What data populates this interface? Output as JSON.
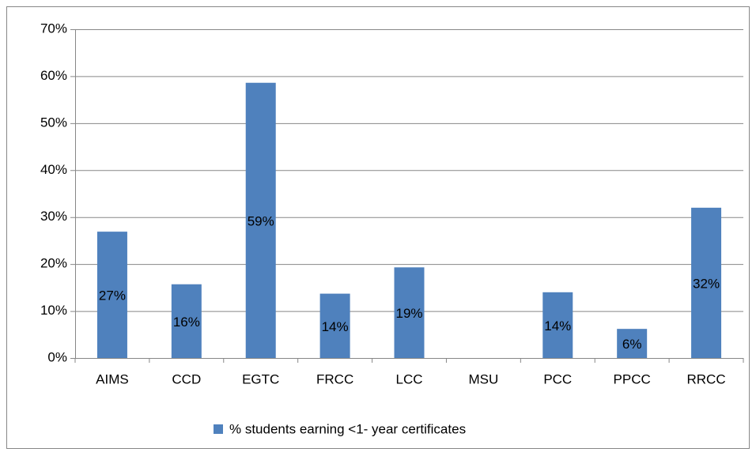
{
  "chart_data": {
    "type": "bar",
    "categories": [
      "AIMS",
      "CCD",
      "EGTC",
      "FRCC",
      "LCC",
      "MSU",
      "PCC",
      "PPCC",
      "RRCC"
    ],
    "series": [
      {
        "name": "% students earning <1- year certificates",
        "color": "#4f81bd",
        "values": [
          26.9,
          15.7,
          58.6,
          13.7,
          19.3,
          null,
          14.0,
          6.2,
          32.0
        ],
        "value_labels": [
          "27%",
          "16%",
          "59%",
          "14%",
          "19%",
          null,
          "14%",
          "6%",
          "32%"
        ]
      }
    ],
    "ylim": [
      0,
      70
    ],
    "yticks": [
      {
        "value": 0,
        "label": "0%"
      },
      {
        "value": 10,
        "label": "10%"
      },
      {
        "value": 20,
        "label": "20%"
      },
      {
        "value": 30,
        "label": "30%"
      },
      {
        "value": 40,
        "label": "40%"
      },
      {
        "value": 50,
        "label": "50%"
      },
      {
        "value": 60,
        "label": "60%"
      },
      {
        "value": 70,
        "label": "70%"
      }
    ],
    "grid": true,
    "legend": "bottom"
  }
}
